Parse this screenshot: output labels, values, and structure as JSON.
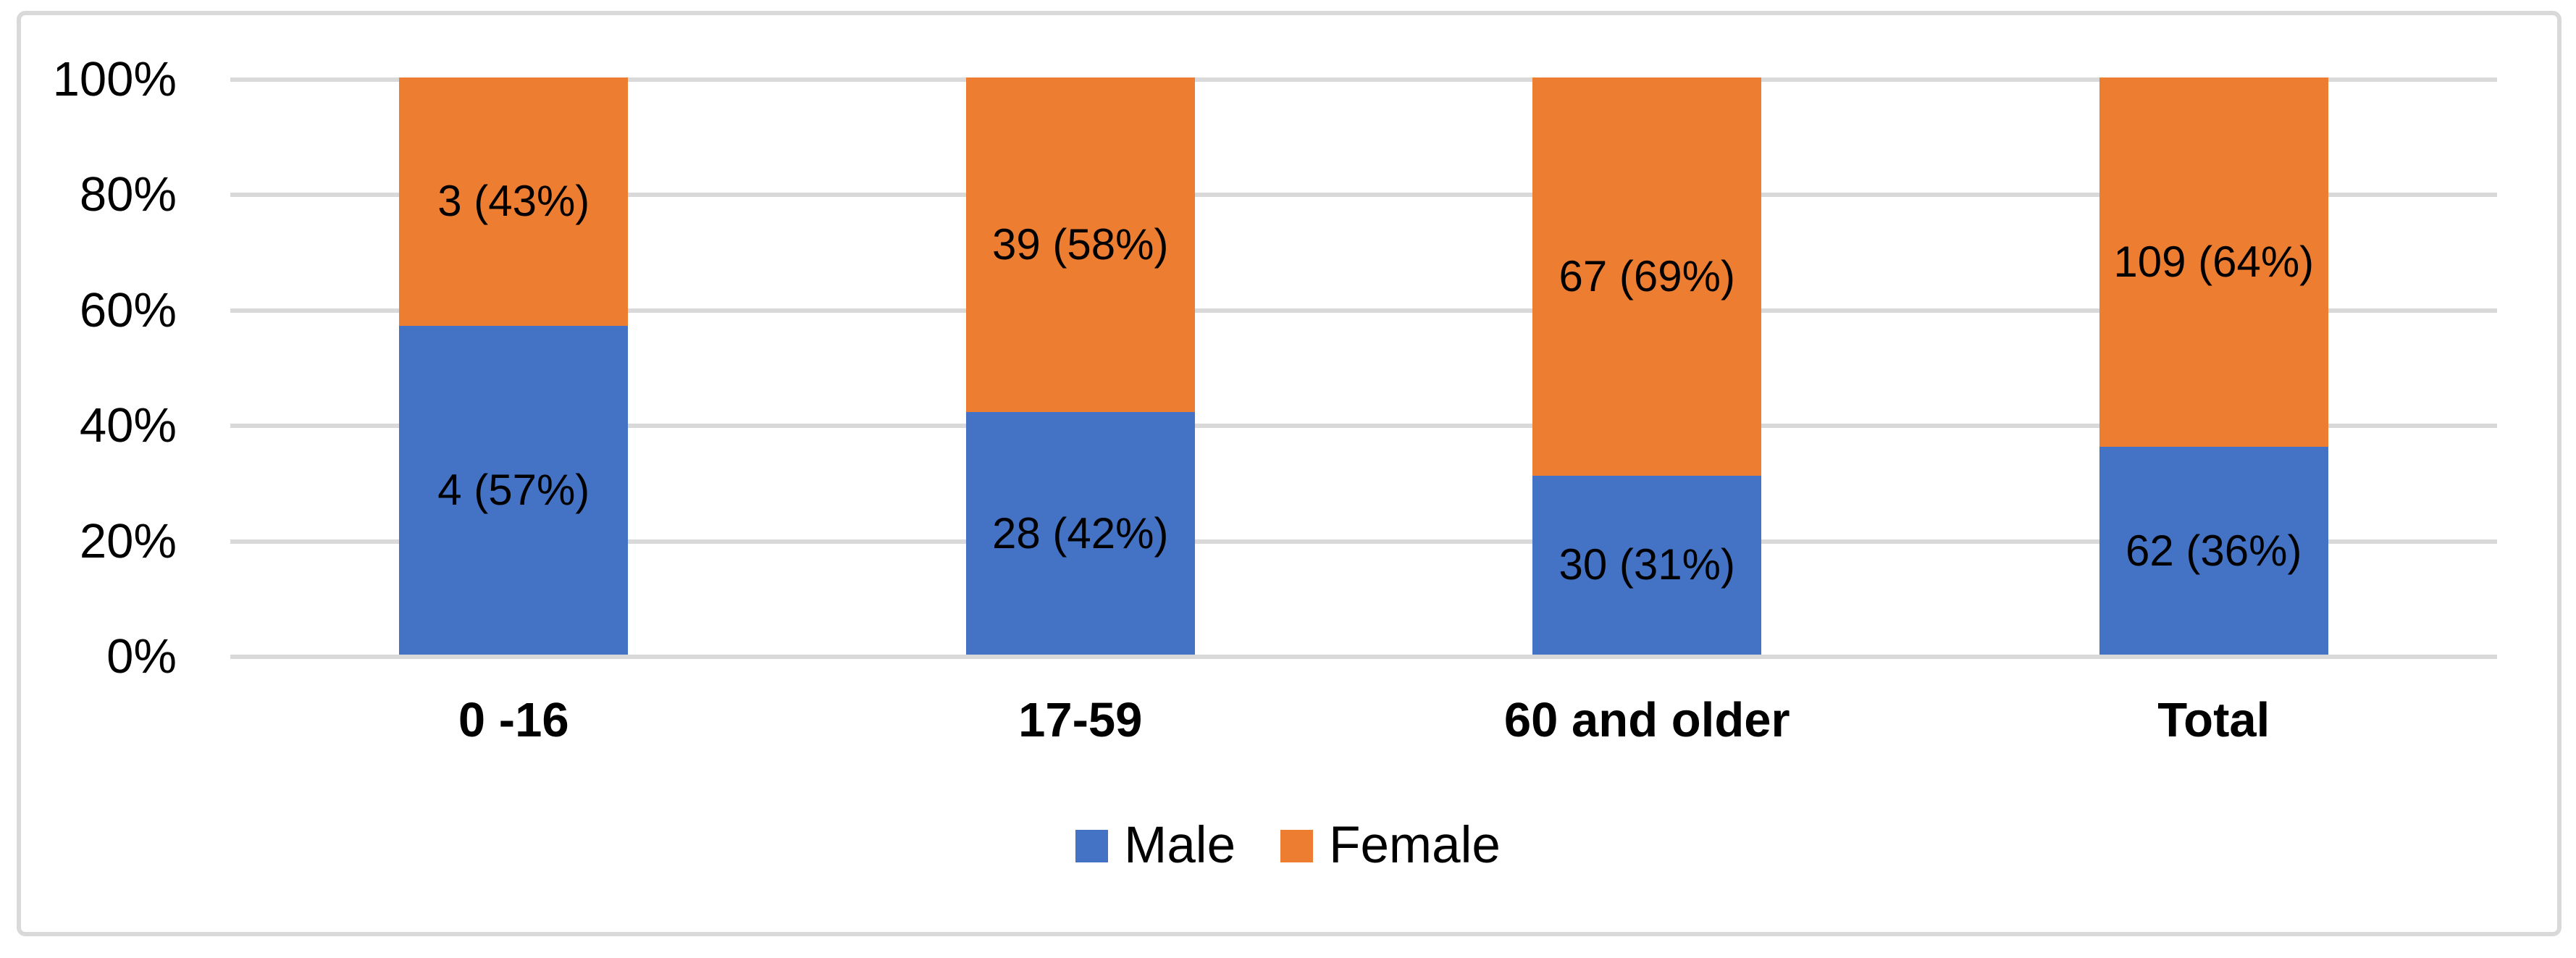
{
  "chart_data": {
    "type": "bar",
    "subtype": "stacked-100-percent-column",
    "title": "",
    "categories": [
      "0 -16",
      "17-59",
      "60 and older",
      "Total"
    ],
    "series": [
      {
        "name": "Male",
        "color": "#4472C4",
        "values": [
          4,
          28,
          30,
          62
        ],
        "percents": [
          57,
          42,
          31,
          36
        ],
        "data_labels": [
          "4 (57%)",
          "28 (42%)",
          "30 (31%)",
          "62 (36%)"
        ]
      },
      {
        "name": "Female",
        "color": "#ED7D31",
        "values": [
          3,
          39,
          67,
          109
        ],
        "percents": [
          43,
          58,
          69,
          64
        ],
        "data_labels": [
          "3 (43%)",
          "39 (58%)",
          "67 (69%)",
          "109 (64%)"
        ]
      }
    ],
    "y_axis": {
      "min": 0,
      "max": 100,
      "tick_interval": 20,
      "tick_labels": [
        "0%",
        "20%",
        "40%",
        "60%",
        "80%",
        "100%"
      ],
      "ylim": [
        0,
        100
      ],
      "gridlines": true
    },
    "x_axis": {
      "label": ""
    },
    "legend": {
      "position": "bottom",
      "entries": [
        {
          "label": "Male",
          "color": "#4472C4"
        },
        {
          "label": "Female",
          "color": "#ED7D31"
        }
      ]
    }
  },
  "style": {
    "male_fill": "#4472C4",
    "female_fill": "#ED7D31",
    "gridline_color": "#D9D9D9",
    "frame_border_color": "#D9D9D9",
    "text_color": "#000000",
    "background": "#FFFFFF"
  }
}
